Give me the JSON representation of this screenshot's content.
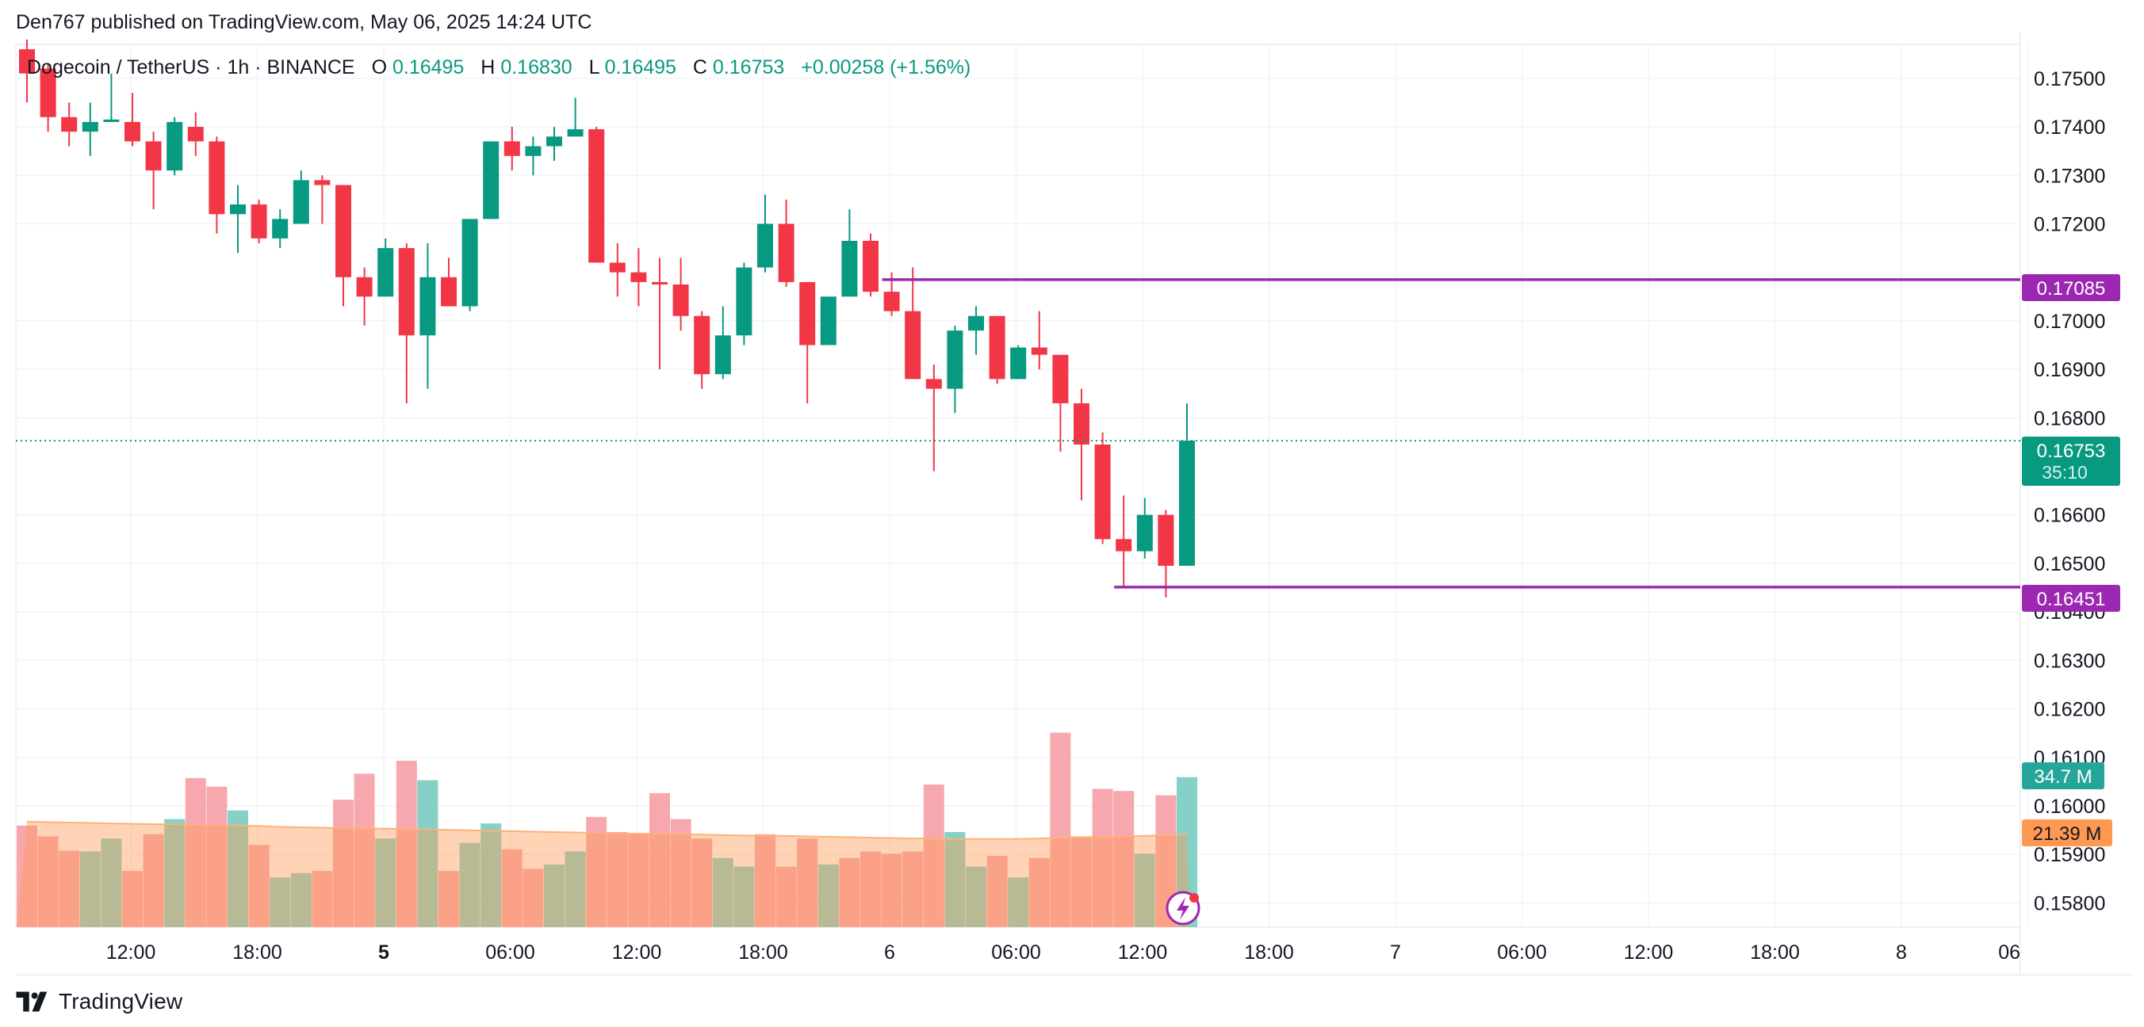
{
  "header": {
    "published": "Den767 published on TradingView.com, May 06, 2025 14:24 UTC"
  },
  "brand": {
    "name": "TradingView"
  },
  "legend": {
    "symbol": "Dogecoin / TetherUS · 1h · BINANCE",
    "o_label": "O",
    "o_value": "0.16495",
    "h_label": "H",
    "h_value": "0.16830",
    "l_label": "L",
    "l_value": "0.16495",
    "c_label": "C",
    "c_value": "0.16753",
    "change": "+0.00258 (+1.56%)"
  },
  "colors": {
    "up": "#089981",
    "down": "#f23645",
    "level": "#9c27b0",
    "volume_ma": "#ff9850",
    "last_price_line": "#089981"
  },
  "price_labels": {
    "level_high": "0.17085",
    "last_price": "0.16753",
    "countdown": "35:10",
    "level_low": "0.16451",
    "volume": "34.7 M",
    "volume_ma": "21.39 M"
  },
  "chart_data": {
    "type": "candlestick",
    "interval": "1h",
    "ylim": [
      0.1575,
      0.1757
    ],
    "y_ticks": [
      "0.17500",
      "0.17400",
      "0.17300",
      "0.17200",
      "0.17000",
      "0.16900",
      "0.16800",
      "0.16600",
      "0.16500",
      "0.16400",
      "0.16300",
      "0.16200",
      "0.16100",
      "0.16000",
      "0.15900",
      "0.15800"
    ],
    "x_ticks": [
      "12:00",
      "18:00",
      "5",
      "06:00",
      "12:00",
      "18:00",
      "6",
      "06:00",
      "12:00",
      "18:00",
      "7",
      "06:00",
      "12:00",
      "18:00",
      "8",
      "06"
    ],
    "bold_x_ticks": [
      "5"
    ],
    "candles": [
      {
        "o": 0.1756,
        "h": 0.1758,
        "l": 0.1745,
        "c": 0.1751
      },
      {
        "o": 0.1752,
        "h": 0.1753,
        "l": 0.1739,
        "c": 0.1742
      },
      {
        "o": 0.1742,
        "h": 0.1745,
        "l": 0.1736,
        "c": 0.1739
      },
      {
        "o": 0.1739,
        "h": 0.1745,
        "l": 0.1734,
        "c": 0.1741
      },
      {
        "o": 0.1741,
        "h": 0.1751,
        "l": 0.1741,
        "c": 0.17415
      },
      {
        "o": 0.1741,
        "h": 0.1747,
        "l": 0.1736,
        "c": 0.1737
      },
      {
        "o": 0.1737,
        "h": 0.1739,
        "l": 0.1723,
        "c": 0.1731
      },
      {
        "o": 0.1731,
        "h": 0.1742,
        "l": 0.173,
        "c": 0.1741
      },
      {
        "o": 0.174,
        "h": 0.1743,
        "l": 0.1734,
        "c": 0.1737
      },
      {
        "o": 0.1737,
        "h": 0.1738,
        "l": 0.1718,
        "c": 0.1722
      },
      {
        "o": 0.1722,
        "h": 0.1728,
        "l": 0.1714,
        "c": 0.1724
      },
      {
        "o": 0.1724,
        "h": 0.1725,
        "l": 0.1716,
        "c": 0.1717
      },
      {
        "o": 0.1717,
        "h": 0.1723,
        "l": 0.1715,
        "c": 0.1721
      },
      {
        "o": 0.172,
        "h": 0.1731,
        "l": 0.172,
        "c": 0.1729
      },
      {
        "o": 0.1729,
        "h": 0.173,
        "l": 0.172,
        "c": 0.1728
      },
      {
        "o": 0.1728,
        "h": 0.1728,
        "l": 0.1703,
        "c": 0.1709
      },
      {
        "o": 0.1709,
        "h": 0.1711,
        "l": 0.1699,
        "c": 0.1705
      },
      {
        "o": 0.1705,
        "h": 0.1717,
        "l": 0.1705,
        "c": 0.1715
      },
      {
        "o": 0.1715,
        "h": 0.1716,
        "l": 0.1683,
        "c": 0.1697
      },
      {
        "o": 0.1697,
        "h": 0.1716,
        "l": 0.1686,
        "c": 0.1709
      },
      {
        "o": 0.1709,
        "h": 0.1713,
        "l": 0.1703,
        "c": 0.1703
      },
      {
        "o": 0.1703,
        "h": 0.1721,
        "l": 0.1702,
        "c": 0.1721
      },
      {
        "o": 0.1721,
        "h": 0.1737,
        "l": 0.1721,
        "c": 0.1737
      },
      {
        "o": 0.1737,
        "h": 0.174,
        "l": 0.1731,
        "c": 0.1734
      },
      {
        "o": 0.1734,
        "h": 0.1738,
        "l": 0.173,
        "c": 0.1736
      },
      {
        "o": 0.1736,
        "h": 0.174,
        "l": 0.1733,
        "c": 0.1738
      },
      {
        "o": 0.1738,
        "h": 0.1746,
        "l": 0.1738,
        "c": 0.17395
      },
      {
        "o": 0.17395,
        "h": 0.174,
        "l": 0.1712,
        "c": 0.1712
      },
      {
        "o": 0.1712,
        "h": 0.1716,
        "l": 0.1705,
        "c": 0.171
      },
      {
        "o": 0.171,
        "h": 0.1715,
        "l": 0.1703,
        "c": 0.1708
      },
      {
        "o": 0.1708,
        "h": 0.1713,
        "l": 0.169,
        "c": 0.17075
      },
      {
        "o": 0.17075,
        "h": 0.1713,
        "l": 0.1698,
        "c": 0.1701
      },
      {
        "o": 0.1701,
        "h": 0.1702,
        "l": 0.1686,
        "c": 0.1689
      },
      {
        "o": 0.1689,
        "h": 0.1703,
        "l": 0.1688,
        "c": 0.1697
      },
      {
        "o": 0.1697,
        "h": 0.1712,
        "l": 0.1695,
        "c": 0.1711
      },
      {
        "o": 0.1711,
        "h": 0.1726,
        "l": 0.171,
        "c": 0.172
      },
      {
        "o": 0.172,
        "h": 0.1725,
        "l": 0.1707,
        "c": 0.1708
      },
      {
        "o": 0.1708,
        "h": 0.1708,
        "l": 0.1683,
        "c": 0.1695
      },
      {
        "o": 0.1695,
        "h": 0.1705,
        "l": 0.1695,
        "c": 0.1705
      },
      {
        "o": 0.1705,
        "h": 0.1723,
        "l": 0.1705,
        "c": 0.17165
      },
      {
        "o": 0.17165,
        "h": 0.1718,
        "l": 0.1705,
        "c": 0.1706
      },
      {
        "o": 0.1706,
        "h": 0.171,
        "l": 0.1701,
        "c": 0.1702
      },
      {
        "o": 0.1702,
        "h": 0.1711,
        "l": 0.1688,
        "c": 0.1688
      },
      {
        "o": 0.1688,
        "h": 0.1691,
        "l": 0.1669,
        "c": 0.1686
      },
      {
        "o": 0.1686,
        "h": 0.1699,
        "l": 0.1681,
        "c": 0.1698
      },
      {
        "o": 0.1698,
        "h": 0.1703,
        "l": 0.1693,
        "c": 0.1701
      },
      {
        "o": 0.1701,
        "h": 0.1701,
        "l": 0.1687,
        "c": 0.1688
      },
      {
        "o": 0.1688,
        "h": 0.1695,
        "l": 0.1688,
        "c": 0.16945
      },
      {
        "o": 0.16945,
        "h": 0.1702,
        "l": 0.169,
        "c": 0.1693
      },
      {
        "o": 0.1693,
        "h": 0.1693,
        "l": 0.1673,
        "c": 0.1683
      },
      {
        "o": 0.1683,
        "h": 0.1686,
        "l": 0.1663,
        "c": 0.16745
      },
      {
        "o": 0.16745,
        "h": 0.1677,
        "l": 0.1654,
        "c": 0.1655
      },
      {
        "o": 0.1655,
        "h": 0.1664,
        "l": 0.1645,
        "c": 0.16525
      },
      {
        "o": 0.16525,
        "h": 0.16635,
        "l": 0.1651,
        "c": 0.166
      },
      {
        "o": 0.166,
        "h": 0.1661,
        "l": 0.1643,
        "c": 0.16495
      },
      {
        "o": 0.16495,
        "h": 0.1683,
        "l": 0.16495,
        "c": 0.16753
      }
    ],
    "volumes": [
      {
        "v": 23.5,
        "up": false
      },
      {
        "v": 21.0,
        "up": false
      },
      {
        "v": 17.7,
        "up": false
      },
      {
        "v": 17.5,
        "up": true
      },
      {
        "v": 20.5,
        "up": true
      },
      {
        "v": 13.0,
        "up": false
      },
      {
        "v": 21.5,
        "up": false
      },
      {
        "v": 25.0,
        "up": true
      },
      {
        "v": 34.5,
        "up": false
      },
      {
        "v": 32.5,
        "up": false
      },
      {
        "v": 27.0,
        "up": true
      },
      {
        "v": 19.0,
        "up": false
      },
      {
        "v": 11.5,
        "up": true
      },
      {
        "v": 12.5,
        "up": true
      },
      {
        "v": 13.0,
        "up": false
      },
      {
        "v": 29.5,
        "up": false
      },
      {
        "v": 35.5,
        "up": false
      },
      {
        "v": 20.5,
        "up": true
      },
      {
        "v": 38.5,
        "up": false
      },
      {
        "v": 34.0,
        "up": true
      },
      {
        "v": 13.0,
        "up": false
      },
      {
        "v": 19.5,
        "up": true
      },
      {
        "v": 24.0,
        "up": true
      },
      {
        "v": 18.0,
        "up": false
      },
      {
        "v": 13.5,
        "up": false
      },
      {
        "v": 14.5,
        "up": true
      },
      {
        "v": 17.5,
        "up": true
      },
      {
        "v": 25.5,
        "up": false
      },
      {
        "v": 22.0,
        "up": false
      },
      {
        "v": 21.5,
        "up": false
      },
      {
        "v": 31.0,
        "up": false
      },
      {
        "v": 25.0,
        "up": false
      },
      {
        "v": 20.5,
        "up": false
      },
      {
        "v": 16.0,
        "up": true
      },
      {
        "v": 14.0,
        "up": true
      },
      {
        "v": 21.5,
        "up": false
      },
      {
        "v": 14.0,
        "up": false
      },
      {
        "v": 20.5,
        "up": false
      },
      {
        "v": 14.5,
        "up": true
      },
      {
        "v": 16.0,
        "up": false
      },
      {
        "v": 17.5,
        "up": false
      },
      {
        "v": 17.0,
        "up": false
      },
      {
        "v": 17.5,
        "up": false
      },
      {
        "v": 33.0,
        "up": false
      },
      {
        "v": 22.0,
        "up": true
      },
      {
        "v": 14.0,
        "up": true
      },
      {
        "v": 16.5,
        "up": false
      },
      {
        "v": 11.5,
        "up": true
      },
      {
        "v": 16.0,
        "up": false
      },
      {
        "v": 45.0,
        "up": false
      },
      {
        "v": 21.0,
        "up": false
      },
      {
        "v": 32.0,
        "up": false
      },
      {
        "v": 31.5,
        "up": false
      },
      {
        "v": 17.0,
        "up": true
      },
      {
        "v": 30.5,
        "up": false
      },
      {
        "v": 34.7,
        "up": true
      }
    ],
    "volume_ma": [
      24.4,
      24.3,
      24.2,
      24.1,
      24.0,
      23.9,
      23.8,
      23.8,
      23.7,
      23.6,
      23.5,
      23.4,
      23.2,
      23.1,
      23.0,
      22.9,
      22.8,
      22.8,
      22.7,
      22.6,
      22.5,
      22.4,
      22.3,
      22.2,
      22.1,
      22.0,
      21.9,
      21.8,
      21.7,
      21.6,
      21.6,
      21.5,
      21.4,
      21.3,
      21.2,
      21.2,
      21.1,
      21.0,
      20.9,
      20.8,
      20.7,
      20.6,
      20.5,
      20.5,
      20.4,
      20.4,
      20.4,
      20.4,
      20.5,
      20.7,
      20.8,
      20.9,
      21.0,
      21.1,
      21.3,
      21.4
    ],
    "volume_range": [
      0,
      55
    ],
    "levels": [
      {
        "price": 0.17085,
        "from_candle": 41
      },
      {
        "price": 0.16451,
        "from_candle": 52
      }
    ],
    "last_price": 0.16753
  }
}
